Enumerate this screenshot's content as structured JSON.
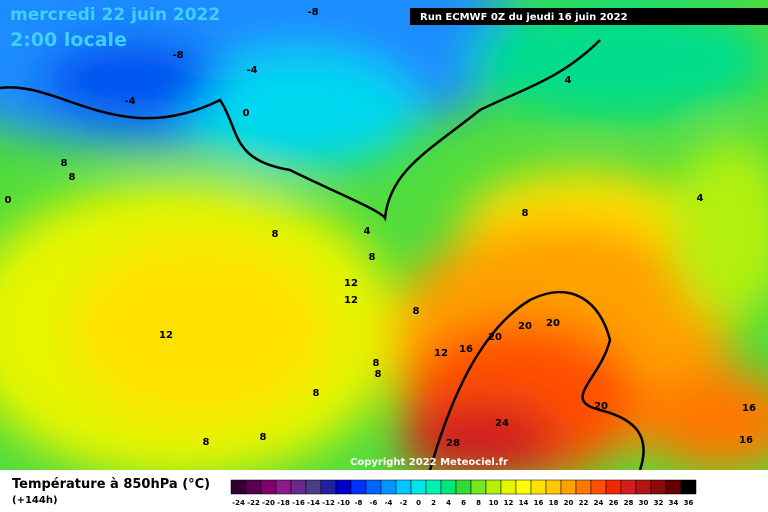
{
  "header": {
    "date": "mercredi 22 juin 2022",
    "time": "2:00 locale",
    "run": "Run ECMWF 0Z du jeudi 16 juin 2022"
  },
  "copyright": "Copyright 2022 Meteociel.fr",
  "legend": {
    "title": "Température à 850hPa (°C)",
    "lead": "(+144h)",
    "labels": [
      -24,
      -22,
      -20,
      -18,
      -16,
      -14,
      -12,
      -10,
      -8,
      -6,
      -4,
      -2,
      0,
      2,
      4,
      6,
      8,
      10,
      12,
      14,
      16,
      18,
      20,
      22,
      24,
      26,
      28,
      30,
      32,
      34,
      36
    ],
    "colors": [
      "#300030",
      "#5a0050",
      "#800070",
      "#8c1a8c",
      "#6a2a8a",
      "#483d8b",
      "#2020a0",
      "#0000c8",
      "#0032ff",
      "#0064ff",
      "#0096ff",
      "#00c8ff",
      "#00e6e6",
      "#00f0b4",
      "#00e678",
      "#32dc32",
      "#78e61e",
      "#b4f00a",
      "#e6f500",
      "#ffff00",
      "#ffe100",
      "#ffc800",
      "#ffa000",
      "#ff7800",
      "#ff5000",
      "#f02800",
      "#d21e1e",
      "#b41414",
      "#8c0a0a",
      "#640000",
      "#000000"
    ]
  },
  "contour_labels": [
    "-8",
    "-8",
    "-4",
    "-4",
    "0",
    "4",
    "8",
    "8",
    "0",
    "4",
    "8",
    "8",
    "4",
    "8",
    "12",
    "12",
    "8",
    "12",
    "20",
    "20",
    "20",
    "16",
    "12",
    "8",
    "8",
    "8",
    "20",
    "16",
    "16",
    "24",
    "28",
    "8",
    "8"
  ]
}
